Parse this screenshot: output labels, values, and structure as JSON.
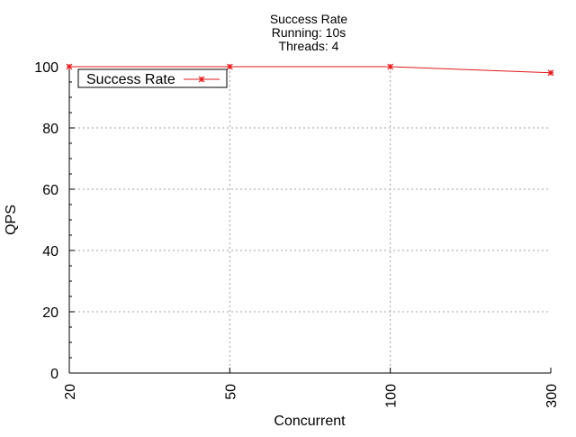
{
  "chart_data": {
    "type": "line",
    "title": [
      "Success Rate",
      "Running: 10s",
      "Threads: 4"
    ],
    "xlabel": "Concurrent",
    "ylabel": "QPS",
    "categories": [
      "20",
      "50",
      "100",
      "300"
    ],
    "series": [
      {
        "name": "Success Rate",
        "values": [
          100,
          100,
          100,
          98
        ]
      }
    ],
    "ylim": [
      0,
      100
    ],
    "yticks": [
      "0",
      "20",
      "40",
      "60",
      "80",
      "100"
    ],
    "grid": true,
    "legend": "top-left",
    "colors": {
      "series": "#e31a1c",
      "grid": "#a0a0a0",
      "axis": "#000000"
    }
  }
}
